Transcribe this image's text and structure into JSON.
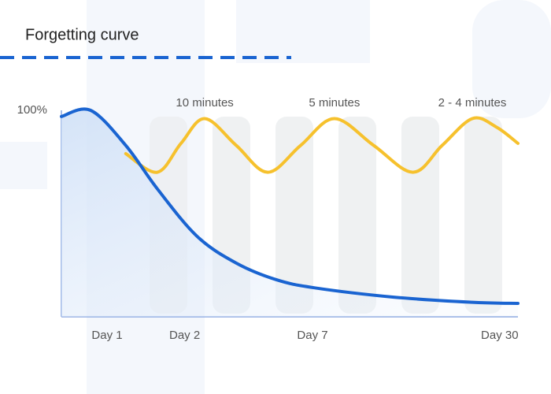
{
  "chart_data": {
    "type": "line",
    "title": "Forgetting curve",
    "xlim": [
      0,
      100
    ],
    "xticks": [
      {
        "value": 10,
        "label": "Day 1"
      },
      {
        "value": 27,
        "label": "Day 2"
      },
      {
        "value": 55,
        "label": "Day 7"
      },
      {
        "value": 96,
        "label": "Day 30"
      }
    ],
    "ylim": [
      0,
      100
    ],
    "yticks": [
      {
        "value": 100,
        "label": "100%"
      }
    ],
    "series": [
      {
        "color": "#1a64d1",
        "x": [
          0,
          6.4,
          14.1,
          21,
          29.7,
          38.3,
          47,
          55.5,
          72.8,
          90,
          100
        ],
        "values": [
          97,
          100,
          83,
          62,
          39,
          26,
          18,
          14,
          9.5,
          7,
          6.5
        ]
      },
      {
        "color": "#f6c12d",
        "x": [
          14.1,
          21,
          26.2,
          31.4,
          38.3,
          45.2,
          52.4,
          59.8,
          68.4,
          77,
          83.4,
          90,
          95.2,
          100
        ],
        "values": [
          79,
          70,
          84,
          96,
          83,
          70,
          83,
          96,
          83,
          70,
          83,
          96,
          92,
          84
        ]
      }
    ],
    "annotations": [
      {
        "text": "10 minutes",
        "x": 31.4
      },
      {
        "text": "5 minutes",
        "x": 59.8
      },
      {
        "text": "2 - 4 minutes",
        "x": 90
      }
    ]
  }
}
